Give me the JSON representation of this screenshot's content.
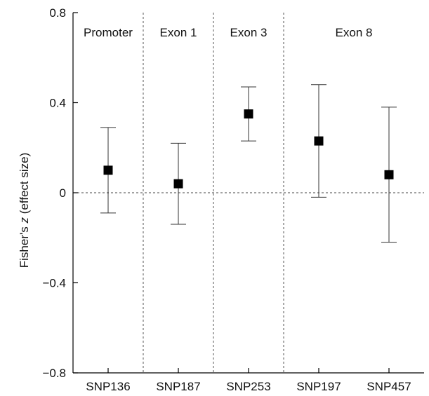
{
  "chart_data": {
    "type": "scatter",
    "ylabel_prefix": "Fisher's ",
    "ylabel_var": "z",
    "ylabel_suffix": " (effect size)",
    "ylim": [
      -0.8,
      0.8
    ],
    "yticks": [
      -0.8,
      -0.4,
      0,
      0.4,
      0.8
    ],
    "ytick_labels": [
      "−0.8",
      "−0.4",
      "0",
      "0.4",
      "0.8"
    ],
    "grid": false,
    "reference_line": 0,
    "regions": [
      {
        "label": "Promoter",
        "snps": [
          "SNP136"
        ]
      },
      {
        "label": "Exon 1",
        "snps": [
          "SNP187"
        ]
      },
      {
        "label": "Exon 3",
        "snps": [
          "SNP253"
        ]
      },
      {
        "label": "Exon 8",
        "snps": [
          "SNP197",
          "SNP457"
        ]
      }
    ],
    "categories": [
      "SNP136",
      "SNP187",
      "SNP253",
      "SNP197",
      "SNP457"
    ],
    "values": [
      0.1,
      0.04,
      0.35,
      0.23,
      0.08
    ],
    "ci_lower": [
      -0.09,
      -0.14,
      0.23,
      -0.02,
      -0.22
    ],
    "ci_upper": [
      0.29,
      0.22,
      0.47,
      0.48,
      0.38
    ]
  }
}
